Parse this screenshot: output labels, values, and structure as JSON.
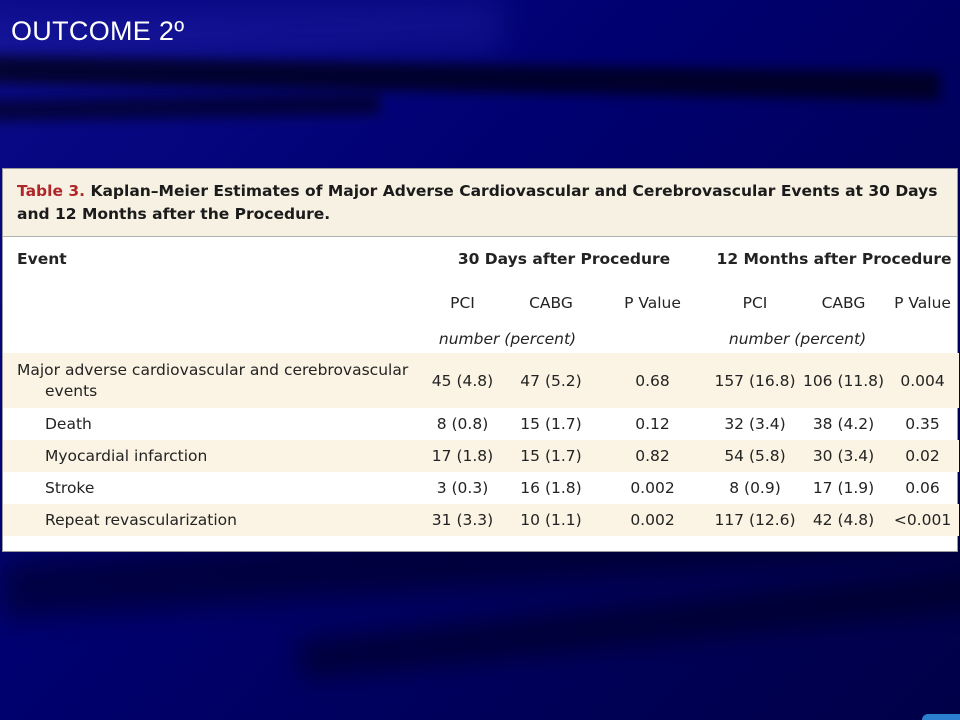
{
  "slide": {
    "title": "OUTCOME 2º"
  },
  "table": {
    "label": "Table 3.",
    "title": "Kaplan–Meier Estimates of Major Adverse Cardiovascular and Cerebrovascular Events at 30 Days and 12 Months after the Procedure.",
    "header": {
      "event": "Event",
      "group_30d": "30 Days after Procedure",
      "group_12m": "12 Months after Procedure"
    },
    "subheaders": [
      "PCI",
      "CABG",
      "P Value",
      "PCI",
      "CABG",
      "P Value"
    ],
    "unit_30d": "number (percent)",
    "unit_12m": "number (percent)",
    "rows": [
      {
        "event_line1": "Major adverse cardiovascular and cerebrovascular",
        "event_line2": "events",
        "values": [
          "45 (4.8)",
          "47 (5.2)",
          "0.68",
          "157 (16.8)",
          "106 (11.8)",
          "0.004"
        ]
      },
      {
        "event": "Death",
        "values": [
          "8 (0.8)",
          "15 (1.7)",
          "0.12",
          "32 (3.4)",
          "38 (4.2)",
          "0.35"
        ]
      },
      {
        "event": "Myocardial infarction",
        "values": [
          "17 (1.8)",
          "15 (1.7)",
          "0.82",
          "54 (5.8)",
          "30 (3.4)",
          "0.02"
        ]
      },
      {
        "event": "Stroke",
        "values": [
          "3 (0.3)",
          "16 (1.8)",
          "0.002",
          "8 (0.9)",
          "17 (1.9)",
          "0.06"
        ]
      },
      {
        "event": "Repeat revascularization",
        "values": [
          "31 (3.3)",
          "10 (1.1)",
          "0.002",
          "117 (12.6)",
          "42 (4.8)",
          "<0.001"
        ]
      }
    ]
  },
  "colors": {
    "background": "#00006a",
    "table_label": "#b0272a",
    "caption_background": "#f7f1e3",
    "row_shade": "#fbf4e4"
  }
}
